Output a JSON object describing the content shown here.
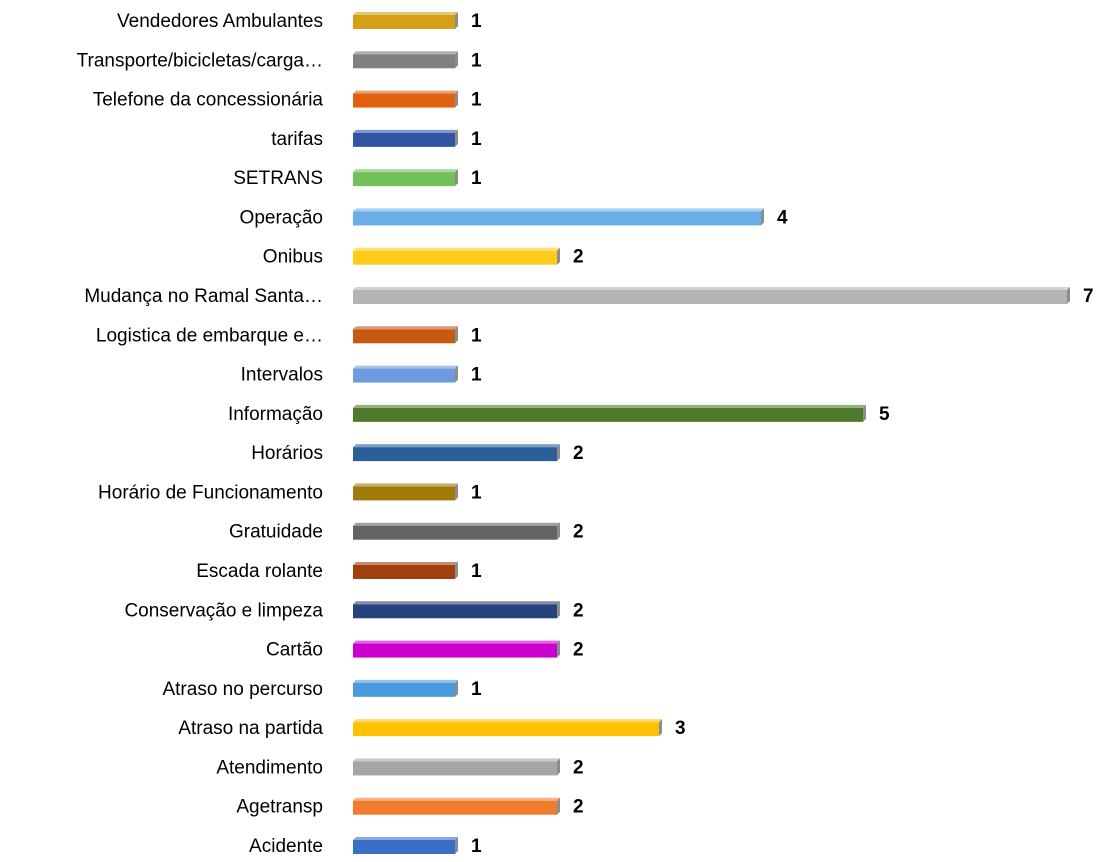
{
  "chart_data": {
    "type": "bar",
    "orientation": "horizontal",
    "categories": [
      "Vendedores Ambulantes",
      "Transporte/bicicletas/carga…",
      "Telefone da concessionária",
      "tarifas",
      "SETRANS",
      "Operação",
      "Onibus",
      "Mudança no Ramal Santa…",
      "Logistica de embarque e…",
      "Intervalos",
      "Informação",
      "Horários",
      "Horário de Funcionamento",
      "Gratuidade",
      "Escada rolante",
      "Conservação e limpeza",
      "Cartão",
      "Atraso no percurso",
      "Atraso na partida",
      "Atendimento",
      "Agetransp",
      "Acidente"
    ],
    "values": [
      1,
      1,
      1,
      1,
      1,
      4,
      2,
      7,
      1,
      1,
      5,
      2,
      1,
      2,
      1,
      2,
      2,
      1,
      3,
      2,
      2,
      1
    ],
    "colors": [
      "#d4a017",
      "#808080",
      "#e0600f",
      "#2f55a4",
      "#72c05a",
      "#6aaee8",
      "#ffcc1a",
      "#b4b4b4",
      "#c55a11",
      "#6f9ae0",
      "#4e7a2c",
      "#2a6099",
      "#a07a0b",
      "#646464",
      "#a0400e",
      "#26437d",
      "#cc00cc",
      "#4a9ae0",
      "#ffc000",
      "#a5a5a5",
      "#f07c30",
      "#3a6fc8"
    ],
    "xlim": [
      0,
      7
    ]
  }
}
